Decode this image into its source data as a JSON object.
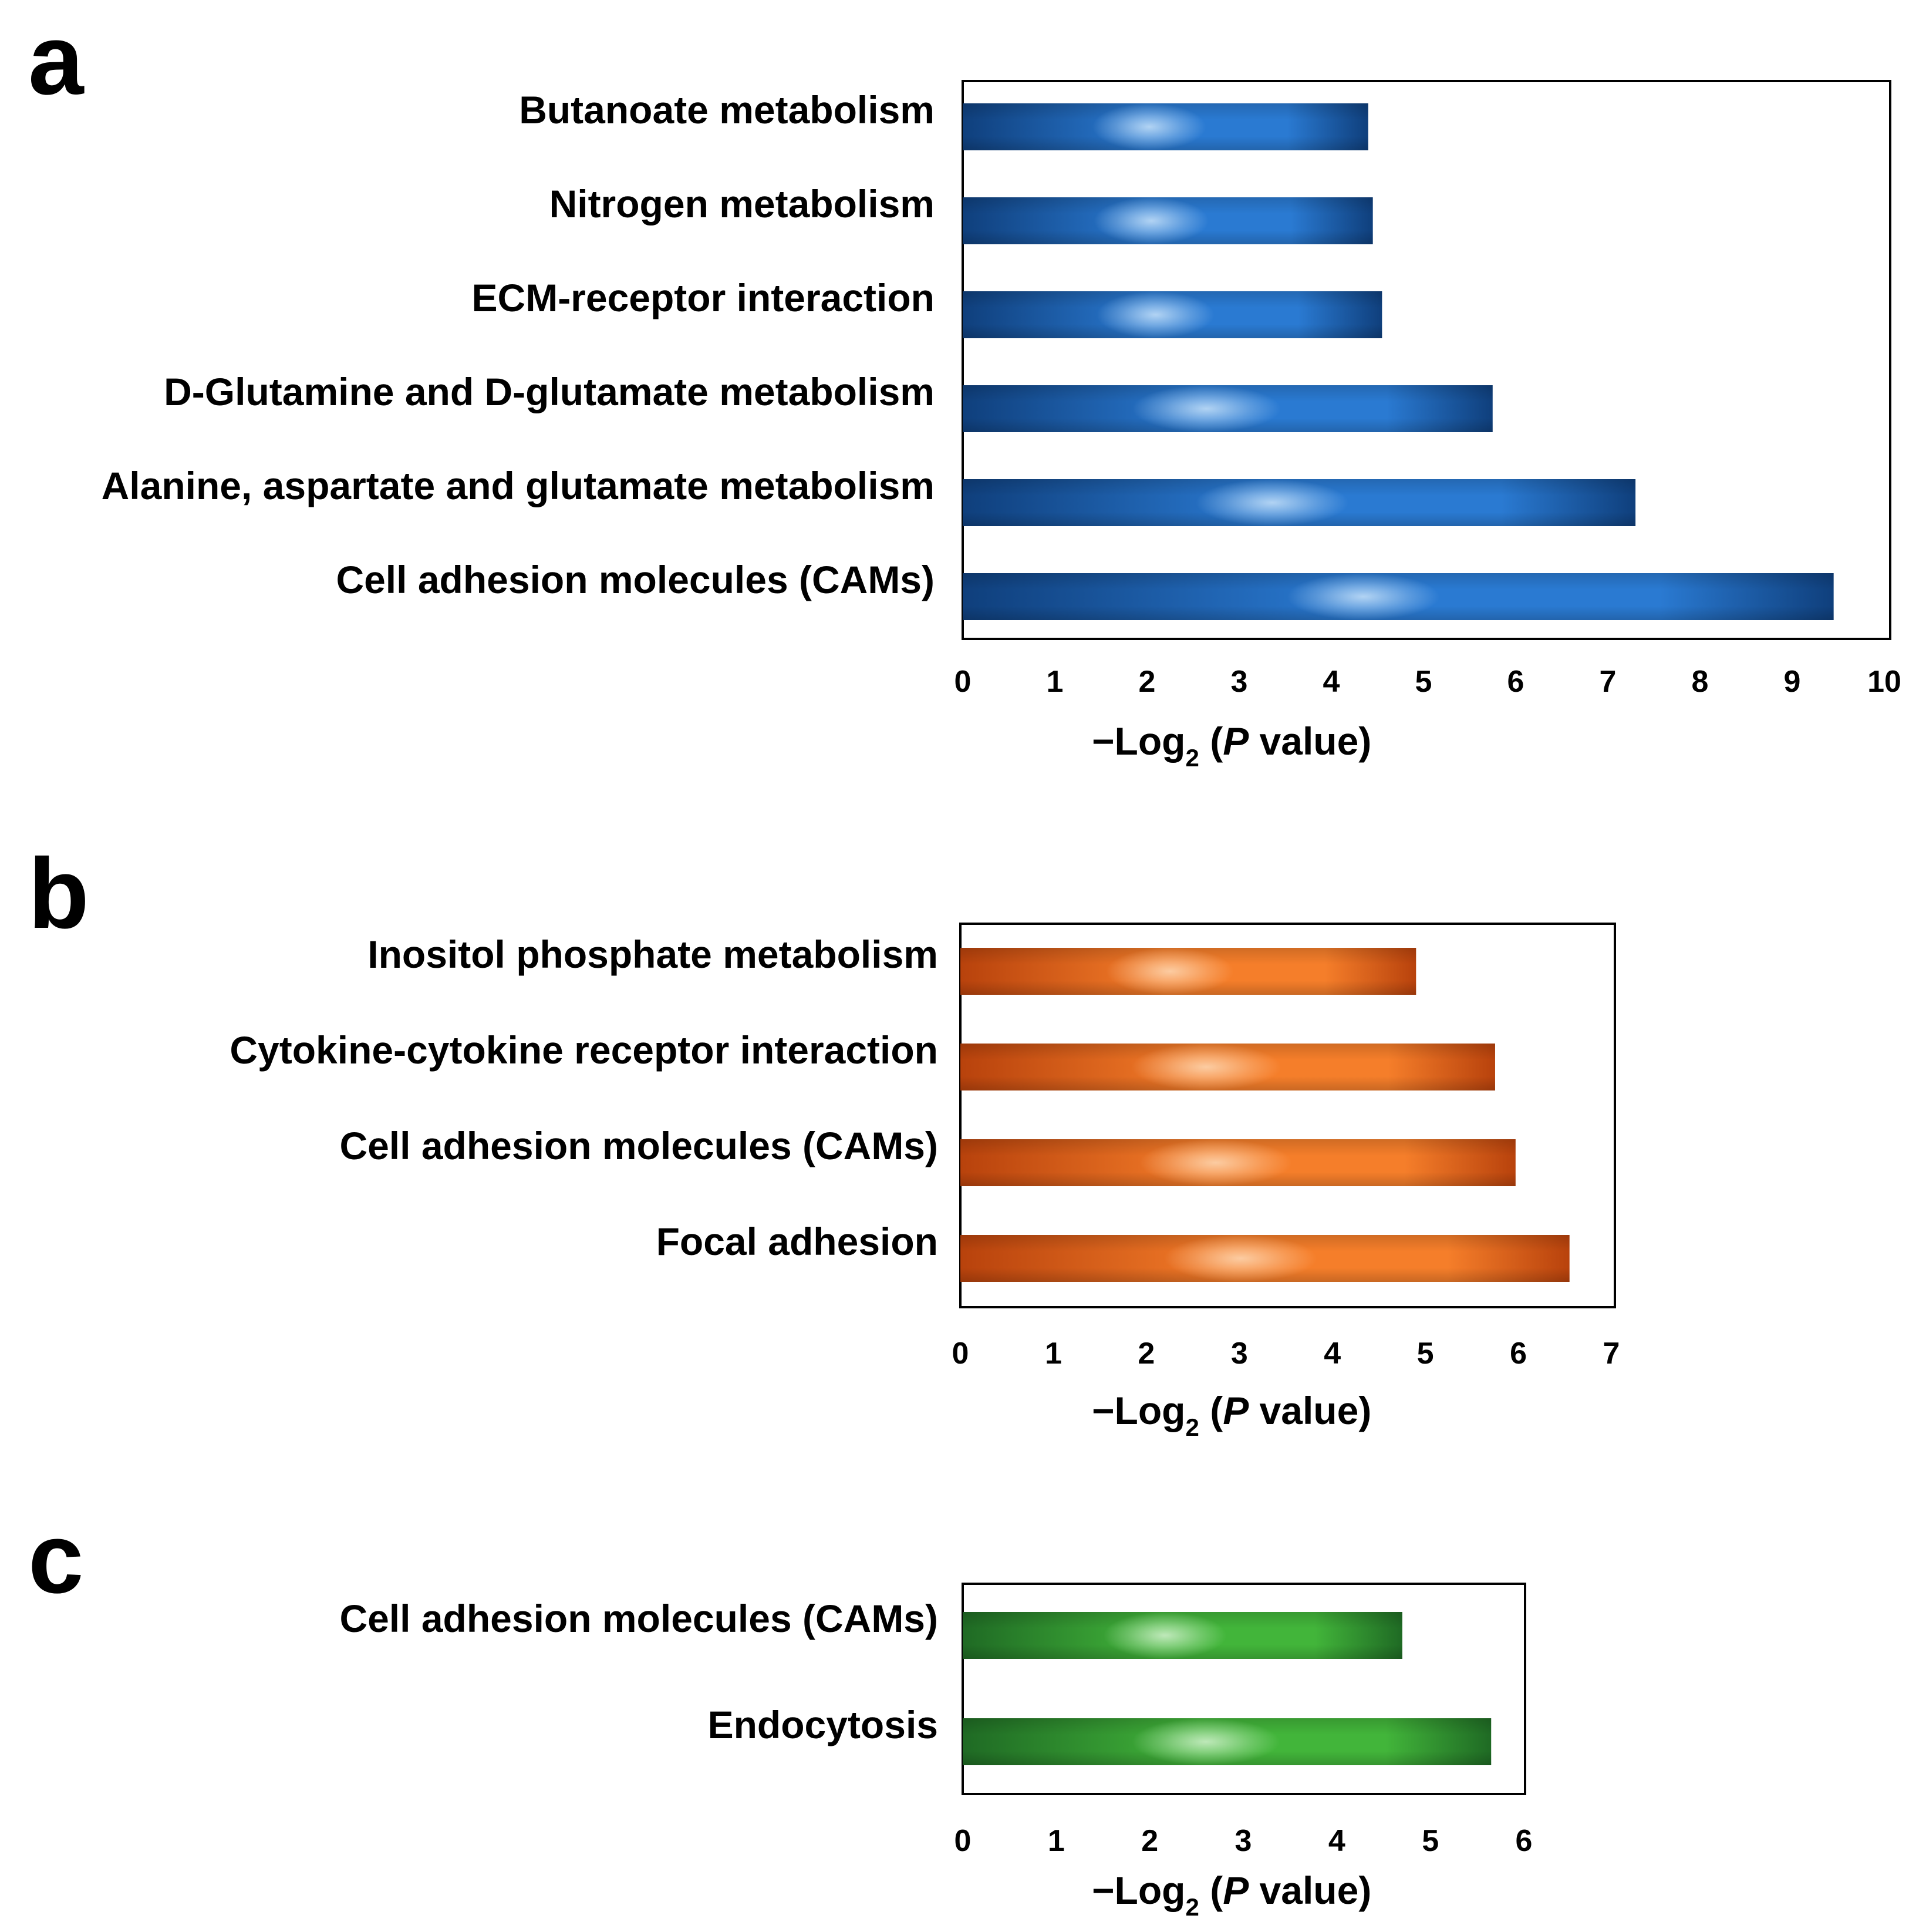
{
  "chart_data": [
    {
      "type": "bar",
      "orientation": "horizontal",
      "panel_label": "a",
      "color": "#2a7ad2",
      "color_dark": "#0f3f7c",
      "color_light": "#b9d8f5",
      "categories": [
        "Butanoate metabolism",
        "Nitrogen metabolism",
        "ECM-receptor interaction",
        "D-Glutamine and D-glutamate metabolism",
        "Alanine, aspartate and glutamate metabolism",
        "Cell adhesion molecules (CAMs)"
      ],
      "values": [
        4.4,
        4.45,
        4.55,
        5.75,
        7.3,
        9.45
      ],
      "xlim": [
        0,
        10
      ],
      "xticks": [
        "0",
        "1",
        "2",
        "3",
        "4",
        "5",
        "6",
        "7",
        "8",
        "9",
        "10"
      ],
      "xlabel": {
        "prefix": "−Log",
        "subscript": "2",
        "open": " (",
        "italic": "P",
        "suffix": " value)"
      }
    },
    {
      "type": "bar",
      "orientation": "horizontal",
      "panel_label": "b",
      "color": "#f57e2a",
      "color_dark": "#b8420c",
      "color_light": "#fcd0a8",
      "categories": [
        "Inositol phosphate metabolism",
        "Cytokine-cytokine receptor interaction",
        "Cell adhesion molecules (CAMs)",
        "Focal adhesion"
      ],
      "values": [
        4.9,
        5.75,
        5.97,
        6.55
      ],
      "xlim": [
        0,
        7
      ],
      "xticks": [
        "0",
        "1",
        "2",
        "3",
        "4",
        "5",
        "6",
        "7"
      ],
      "xlabel": {
        "prefix": "−Log",
        "subscript": "2",
        "open": " (",
        "italic": "P",
        "suffix": " value)"
      }
    },
    {
      "type": "bar",
      "orientation": "horizontal",
      "panel_label": "c",
      "color": "#42b53a",
      "color_dark": "#1f6a24",
      "color_light": "#c5ebc0",
      "categories": [
        "Cell adhesion molecules (CAMs)",
        "Endocytosis"
      ],
      "values": [
        4.7,
        5.65
      ],
      "xlim": [
        0,
        6
      ],
      "xticks": [
        "0",
        "1",
        "2",
        "3",
        "4",
        "5",
        "6"
      ],
      "xlabel": {
        "prefix": "−Log",
        "subscript": "2",
        "open": " (",
        "italic": "P",
        "suffix": " value)"
      }
    }
  ]
}
